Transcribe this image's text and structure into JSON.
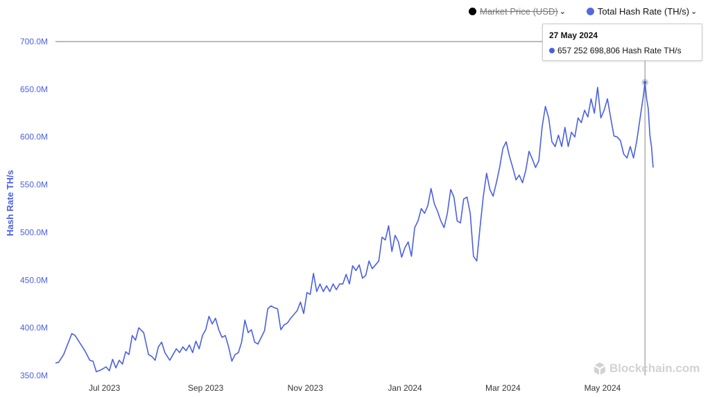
{
  "legend": {
    "market_price_label": "Market Price (USD)",
    "hash_rate_label": "Total Hash Rate (TH/s)",
    "chevron": "⌄"
  },
  "tooltip": {
    "date": "27 May 2024",
    "value_text": "657 252 698,806 Hash Rate TH/s"
  },
  "watermark": {
    "text": "Blockchain.com",
    "icon": "blockchain-logo-icon"
  },
  "colors": {
    "series": "#4a5fe0",
    "axis_text": "#4a5fe0",
    "crosshair": "#9a9a9a",
    "x_text": "#333333"
  },
  "chart_data": {
    "type": "line",
    "ylabel": "Hash Rate TH/s",
    "ylim": [
      350,
      700
    ],
    "y_ticks": [
      350,
      400,
      450,
      500,
      550,
      600,
      650,
      700
    ],
    "y_tick_labels": [
      "350.0M",
      "400.0M",
      "450.0M",
      "500.0M",
      "550.0M",
      "600.0M",
      "650.0M",
      "700.0M"
    ],
    "x_tick_labels": [
      {
        "date": "2023-07-01",
        "label": "Jul 2023"
      },
      {
        "date": "2023-09-01",
        "label": "Sep 2023"
      },
      {
        "date": "2023-11-01",
        "label": "Nov 2023"
      },
      {
        "date": "2024-01-01",
        "label": "Jan 2024"
      },
      {
        "date": "2024-03-01",
        "label": "Mar 2024"
      },
      {
        "date": "2024-05-01",
        "label": "May 2024"
      }
    ],
    "series": [
      {
        "name": "Total Hash Rate (TH/s)",
        "points": [
          [
            "2023-06-01",
            363
          ],
          [
            "2023-06-03",
            364
          ],
          [
            "2023-06-06",
            372
          ],
          [
            "2023-06-09",
            385
          ],
          [
            "2023-06-11",
            394
          ],
          [
            "2023-06-13",
            392
          ],
          [
            "2023-06-16",
            384
          ],
          [
            "2023-06-19",
            376
          ],
          [
            "2023-06-22",
            366
          ],
          [
            "2023-06-24",
            365
          ],
          [
            "2023-06-26",
            354
          ],
          [
            "2023-06-29",
            356
          ],
          [
            "2023-07-02",
            359
          ],
          [
            "2023-07-04",
            355
          ],
          [
            "2023-07-06",
            367
          ],
          [
            "2023-07-08",
            358
          ],
          [
            "2023-07-10",
            366
          ],
          [
            "2023-07-12",
            362
          ],
          [
            "2023-07-14",
            375
          ],
          [
            "2023-07-16",
            372
          ],
          [
            "2023-07-18",
            392
          ],
          [
            "2023-07-20",
            387
          ],
          [
            "2023-07-22",
            400
          ],
          [
            "2023-07-25",
            395
          ],
          [
            "2023-07-28",
            372
          ],
          [
            "2023-07-30",
            370
          ],
          [
            "2023-08-01",
            366
          ],
          [
            "2023-08-03",
            380
          ],
          [
            "2023-08-05",
            385
          ],
          [
            "2023-08-07",
            374
          ],
          [
            "2023-08-10",
            366
          ],
          [
            "2023-08-12",
            372
          ],
          [
            "2023-08-14",
            378
          ],
          [
            "2023-08-16",
            374
          ],
          [
            "2023-08-18",
            380
          ],
          [
            "2023-08-20",
            376
          ],
          [
            "2023-08-22",
            382
          ],
          [
            "2023-08-24",
            374
          ],
          [
            "2023-08-26",
            386
          ],
          [
            "2023-08-28",
            378
          ],
          [
            "2023-08-30",
            392
          ],
          [
            "2023-09-01",
            398
          ],
          [
            "2023-09-03",
            412
          ],
          [
            "2023-09-05",
            404
          ],
          [
            "2023-09-07",
            410
          ],
          [
            "2023-09-09",
            398
          ],
          [
            "2023-09-11",
            390
          ],
          [
            "2023-09-13",
            392
          ],
          [
            "2023-09-15",
            380
          ],
          [
            "2023-09-17",
            365
          ],
          [
            "2023-09-19",
            372
          ],
          [
            "2023-09-21",
            374
          ],
          [
            "2023-09-23",
            385
          ],
          [
            "2023-09-25",
            408
          ],
          [
            "2023-09-27",
            395
          ],
          [
            "2023-09-29",
            398
          ],
          [
            "2023-10-01",
            385
          ],
          [
            "2023-10-03",
            383
          ],
          [
            "2023-10-05",
            390
          ],
          [
            "2023-10-07",
            397
          ],
          [
            "2023-10-09",
            420
          ],
          [
            "2023-10-11",
            423
          ],
          [
            "2023-10-13",
            421
          ],
          [
            "2023-10-15",
            420
          ],
          [
            "2023-10-17",
            398
          ],
          [
            "2023-10-19",
            403
          ],
          [
            "2023-10-21",
            405
          ],
          [
            "2023-10-23",
            410
          ],
          [
            "2023-10-25",
            414
          ],
          [
            "2023-10-27",
            418
          ],
          [
            "2023-10-29",
            427
          ],
          [
            "2023-10-31",
            415
          ],
          [
            "2023-11-02",
            437
          ],
          [
            "2023-11-04",
            435
          ],
          [
            "2023-11-06",
            457
          ],
          [
            "2023-11-08",
            438
          ],
          [
            "2023-11-10",
            446
          ],
          [
            "2023-11-12",
            438
          ],
          [
            "2023-11-14",
            444
          ],
          [
            "2023-11-16",
            438
          ],
          [
            "2023-11-18",
            446
          ],
          [
            "2023-11-20",
            440
          ],
          [
            "2023-11-22",
            446
          ],
          [
            "2023-11-24",
            446
          ],
          [
            "2023-11-26",
            456
          ],
          [
            "2023-11-28",
            446
          ],
          [
            "2023-11-30",
            465
          ],
          [
            "2023-12-02",
            460
          ],
          [
            "2023-12-04",
            466
          ],
          [
            "2023-12-06",
            452
          ],
          [
            "2023-12-08",
            455
          ],
          [
            "2023-12-10",
            470
          ],
          [
            "2023-12-12",
            462
          ],
          [
            "2023-12-14",
            466
          ],
          [
            "2023-12-16",
            470
          ],
          [
            "2023-12-18",
            495
          ],
          [
            "2023-12-20",
            492
          ],
          [
            "2023-12-22",
            507
          ],
          [
            "2023-12-24",
            480
          ],
          [
            "2023-12-26",
            497
          ],
          [
            "2023-12-28",
            490
          ],
          [
            "2023-12-30",
            474
          ],
          [
            "2024-01-01",
            484
          ],
          [
            "2024-01-03",
            490
          ],
          [
            "2024-01-05",
            475
          ],
          [
            "2024-01-07",
            505
          ],
          [
            "2024-01-09",
            512
          ],
          [
            "2024-01-11",
            525
          ],
          [
            "2024-01-13",
            520
          ],
          [
            "2024-01-15",
            528
          ],
          [
            "2024-01-17",
            546
          ],
          [
            "2024-01-19",
            530
          ],
          [
            "2024-01-21",
            522
          ],
          [
            "2024-01-23",
            512
          ],
          [
            "2024-01-25",
            505
          ],
          [
            "2024-01-27",
            520
          ],
          [
            "2024-01-29",
            545
          ],
          [
            "2024-01-31",
            537
          ],
          [
            "2024-02-02",
            512
          ],
          [
            "2024-02-04",
            510
          ],
          [
            "2024-02-06",
            535
          ],
          [
            "2024-02-08",
            537
          ],
          [
            "2024-02-10",
            520
          ],
          [
            "2024-02-12",
            475
          ],
          [
            "2024-02-14",
            470
          ],
          [
            "2024-02-16",
            505
          ],
          [
            "2024-02-18",
            538
          ],
          [
            "2024-02-20",
            562
          ],
          [
            "2024-02-22",
            545
          ],
          [
            "2024-02-24",
            538
          ],
          [
            "2024-02-26",
            552
          ],
          [
            "2024-02-28",
            568
          ],
          [
            "2024-03-01",
            588
          ],
          [
            "2024-03-03",
            595
          ],
          [
            "2024-03-05",
            580
          ],
          [
            "2024-03-07",
            568
          ],
          [
            "2024-03-09",
            555
          ],
          [
            "2024-03-11",
            560
          ],
          [
            "2024-03-13",
            552
          ],
          [
            "2024-03-15",
            565
          ],
          [
            "2024-03-17",
            585
          ],
          [
            "2024-03-19",
            577
          ],
          [
            "2024-03-21",
            568
          ],
          [
            "2024-03-23",
            575
          ],
          [
            "2024-03-25",
            610
          ],
          [
            "2024-03-27",
            632
          ],
          [
            "2024-03-29",
            620
          ],
          [
            "2024-03-31",
            595
          ],
          [
            "2024-04-02",
            590
          ],
          [
            "2024-04-04",
            602
          ],
          [
            "2024-04-06",
            590
          ],
          [
            "2024-04-08",
            610
          ],
          [
            "2024-04-10",
            590
          ],
          [
            "2024-04-12",
            605
          ],
          [
            "2024-04-14",
            600
          ],
          [
            "2024-04-16",
            620
          ],
          [
            "2024-04-18",
            615
          ],
          [
            "2024-04-20",
            628
          ],
          [
            "2024-04-22",
            621
          ],
          [
            "2024-04-24",
            640
          ],
          [
            "2024-04-26",
            625
          ],
          [
            "2024-04-28",
            652
          ],
          [
            "2024-04-30",
            620
          ],
          [
            "2024-05-02",
            628
          ],
          [
            "2024-05-04",
            640
          ],
          [
            "2024-05-06",
            620
          ],
          [
            "2024-05-08",
            601
          ],
          [
            "2024-05-10",
            600
          ],
          [
            "2024-05-12",
            596
          ],
          [
            "2024-05-14",
            582
          ],
          [
            "2024-05-16",
            578
          ],
          [
            "2024-05-18",
            590
          ],
          [
            "2024-05-20",
            578
          ],
          [
            "2024-05-22",
            596
          ],
          [
            "2024-05-24",
            620
          ],
          [
            "2024-05-26",
            643
          ],
          [
            "2024-05-27",
            657.25
          ],
          [
            "2024-05-28",
            640
          ],
          [
            "2024-05-29",
            630
          ],
          [
            "2024-05-30",
            602
          ],
          [
            "2024-05-31",
            590
          ],
          [
            "2024-06-01",
            568
          ]
        ]
      }
    ],
    "highlight": {
      "date": "2024-05-27",
      "value": 657.25
    },
    "grid": false,
    "legend_position": "top-right"
  }
}
